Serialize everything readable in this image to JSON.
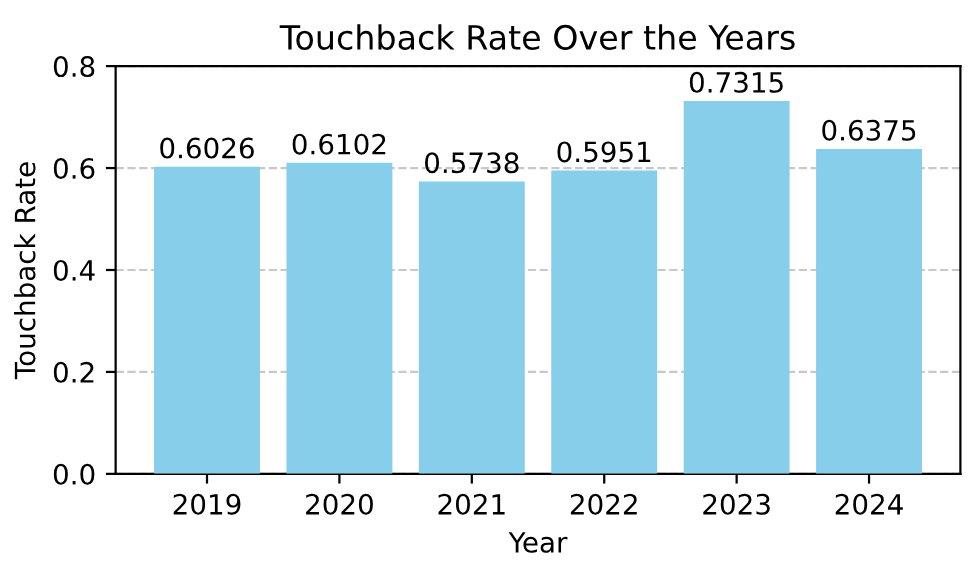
{
  "chart_data": {
    "type": "bar",
    "title": "Touchback Rate Over the Years",
    "xlabel": "Year",
    "ylabel": "Touchback Rate",
    "categories": [
      "2019",
      "2020",
      "2021",
      "2022",
      "2023",
      "2024"
    ],
    "values": [
      0.6026,
      0.6102,
      0.5738,
      0.5951,
      0.7315,
      0.6375
    ],
    "color": "#87ceeb",
    "ylim": [
      0,
      0.8
    ],
    "yticks": [
      {
        "value": 0,
        "label": "0.0"
      },
      0.2,
      0.4,
      0.6,
      0.8
    ],
    "grid": "y",
    "line_style": "dashed",
    "data_labels": true
  }
}
